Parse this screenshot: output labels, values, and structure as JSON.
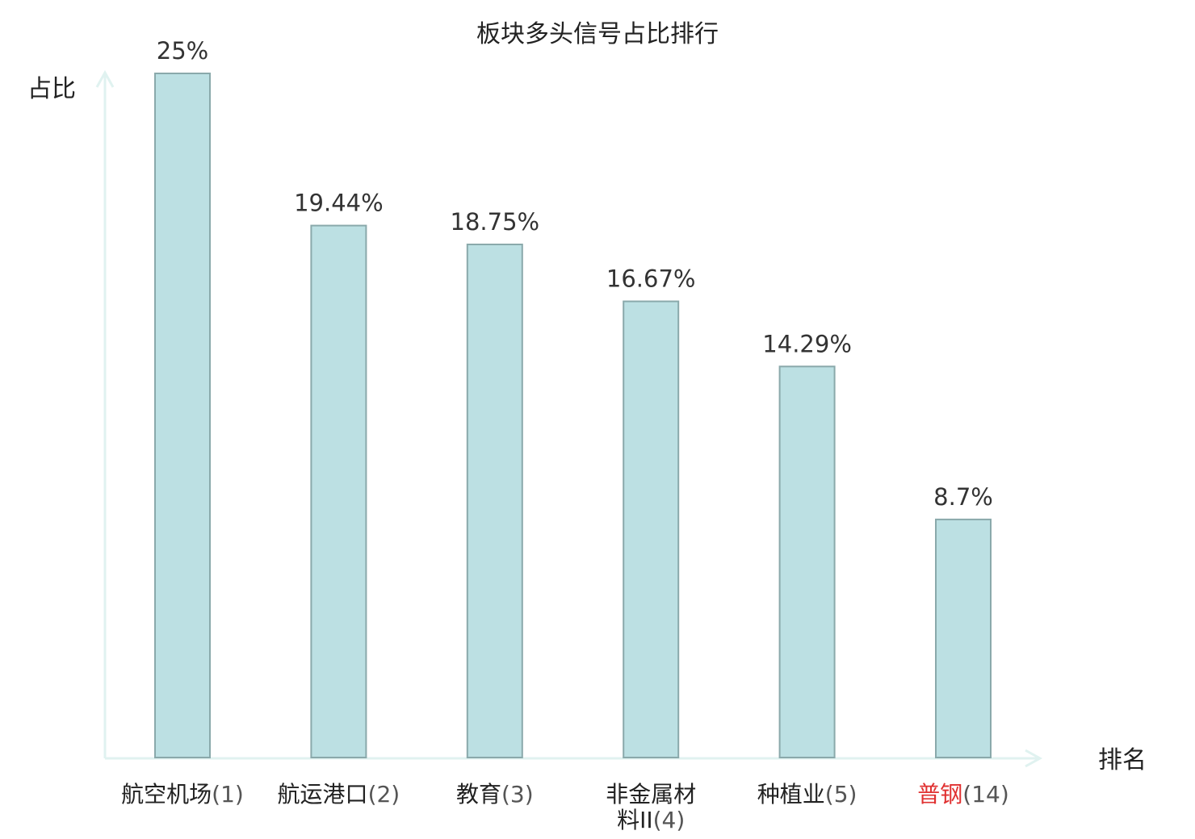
{
  "chart_data": {
    "type": "bar",
    "title": "板块多头信号占比排行",
    "ylabel": "占比",
    "xlabel": "排名",
    "ylim": [
      0,
      25
    ],
    "categories": [
      {
        "name": "航空机场",
        "rank": "(1)",
        "lines": [
          "航空机场(1)"
        ]
      },
      {
        "name": "航运港口",
        "rank": "(2)",
        "lines": [
          "航运港口(2)"
        ]
      },
      {
        "name": "教育",
        "rank": "(3)",
        "lines": [
          "教育(3)"
        ]
      },
      {
        "name": "非金属材料II",
        "rank": "(4)",
        "lines": [
          "非金属材",
          "料II(4)"
        ]
      },
      {
        "name": "种植业",
        "rank": "(5)",
        "lines": [
          "种植业(5)"
        ]
      },
      {
        "name": "普钢",
        "rank": "(14)",
        "lines": [
          "普钢(14)"
        ],
        "highlight": true
      }
    ],
    "values": [
      25,
      19.44,
      18.75,
      16.67,
      14.29,
      8.7
    ],
    "value_labels": [
      "25%",
      "19.44%",
      "18.75%",
      "16.67%",
      "14.29%",
      "8.7%"
    ],
    "colors": {
      "bar_fill": "#bce0e3",
      "bar_stroke": "#8aa9ab",
      "axis": "#e0f2f0",
      "highlight_text": "#e03030"
    }
  }
}
